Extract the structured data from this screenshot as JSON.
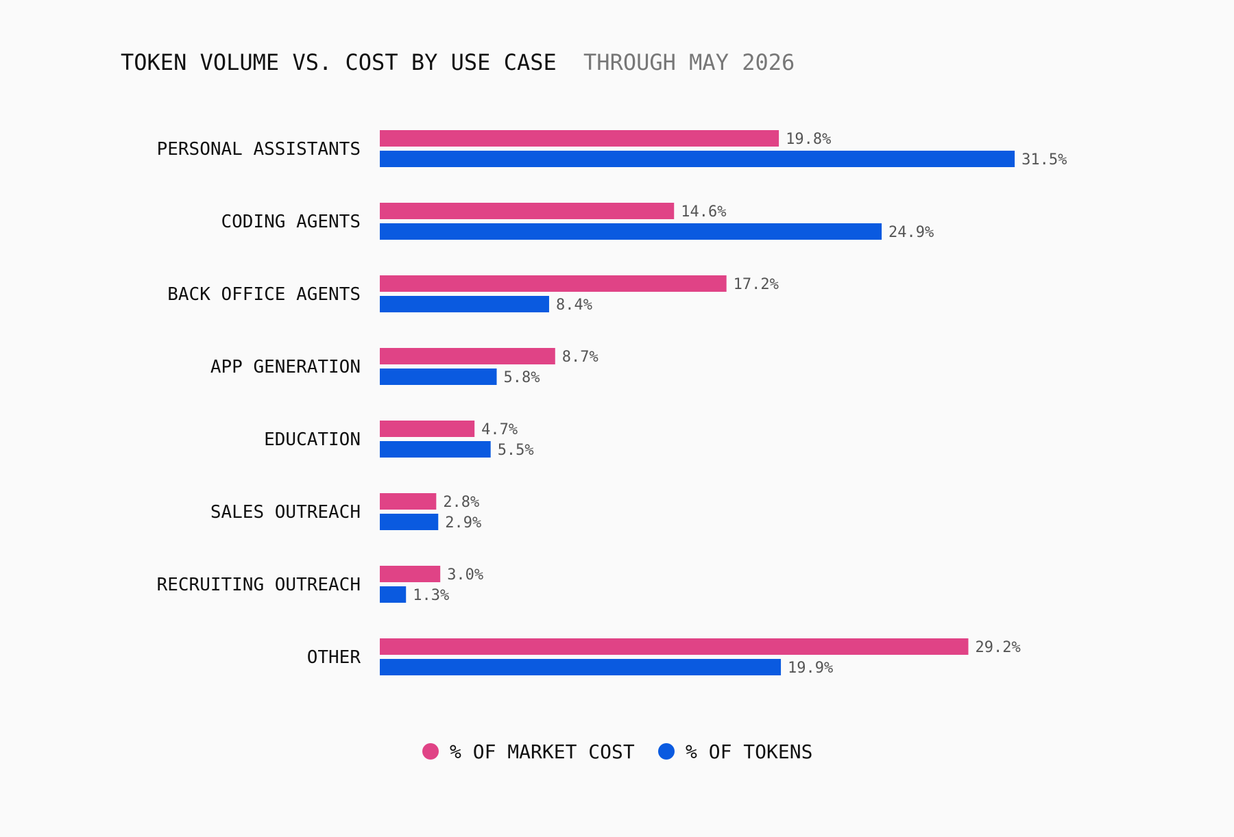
{
  "chart_data": {
    "type": "bar",
    "orientation": "horizontal",
    "title": "TOKEN VOLUME VS. COST BY USE CASE",
    "subtitle": "THROUGH MAY 2026",
    "categories": [
      "PERSONAL ASSISTANTS",
      "CODING AGENTS",
      "BACK OFFICE AGENTS",
      "APP GENERATION",
      "EDUCATION",
      "SALES OUTREACH",
      "RECRUITING OUTREACH",
      "OTHER"
    ],
    "series": [
      {
        "name": "% OF MARKET COST",
        "color": "#e04386",
        "values": [
          19.8,
          14.6,
          17.2,
          8.7,
          4.7,
          2.8,
          3.0,
          29.2
        ],
        "labels": [
          "19.8%",
          "14.6%",
          "17.2%",
          "8.7%",
          "4.7%",
          "2.8%",
          "3.0%",
          "29.2%"
        ]
      },
      {
        "name": "% OF TOKENS",
        "color": "#0a5ae0",
        "values": [
          31.5,
          24.9,
          8.4,
          5.8,
          5.5,
          2.9,
          1.3,
          19.9
        ],
        "labels": [
          "31.5%",
          "24.9%",
          "8.4%",
          "5.8%",
          "5.5%",
          "2.9%",
          "1.3%",
          "19.9%"
        ]
      }
    ],
    "xlim": [
      0,
      35
    ],
    "grid": false,
    "legend": "bottom-center"
  }
}
